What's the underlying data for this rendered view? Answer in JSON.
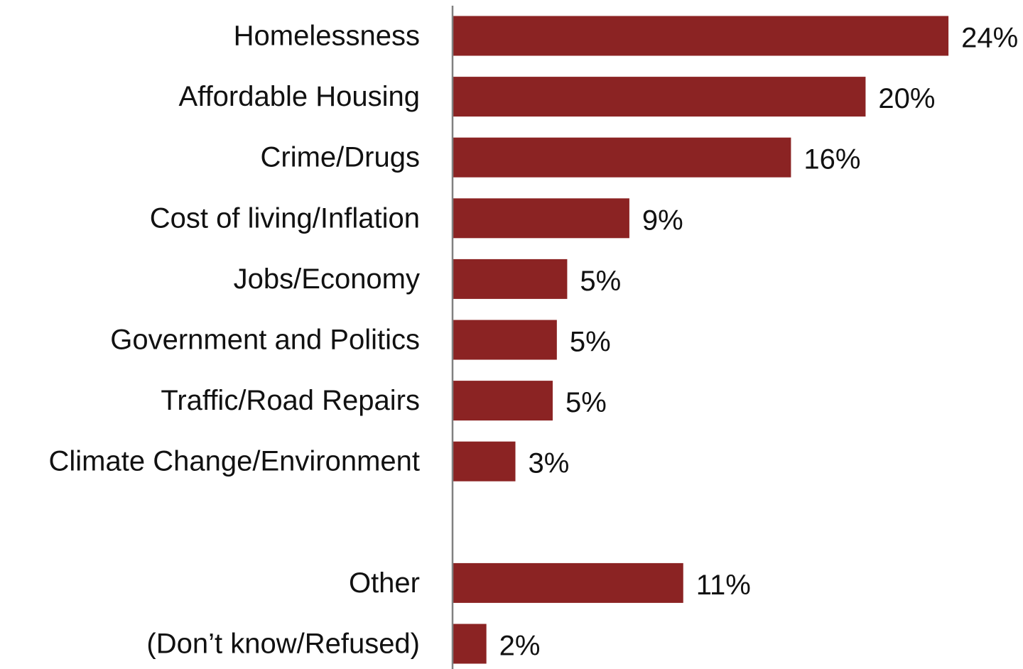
{
  "chart_data": {
    "type": "bar",
    "orientation": "horizontal",
    "categories": [
      "Homelessness",
      "Affordable Housing",
      "Crime/Drugs",
      "Cost of living/Inflation",
      "Jobs/Economy",
      "Government and Politics",
      "Traffic/Road Repairs",
      "Climate Change/Environment",
      "",
      "Other",
      "(Don’t know/Refused)"
    ],
    "values": [
      24,
      20,
      16,
      9,
      5,
      5,
      5,
      3,
      null,
      11,
      2
    ],
    "value_labels": [
      "24%",
      "20%",
      "16%",
      "9%",
      "5%",
      "5%",
      "5%",
      "3%",
      "",
      "11%",
      "2%"
    ],
    "estimated_values": [
      23.9,
      19.9,
      16.3,
      8.5,
      5.5,
      5.0,
      4.8,
      3.0,
      null,
      11.1,
      1.6
    ],
    "xlim": [
      0,
      24
    ],
    "grid": false,
    "legend": "none",
    "bar_color": "#8b2323",
    "axis_color": "#808080"
  }
}
